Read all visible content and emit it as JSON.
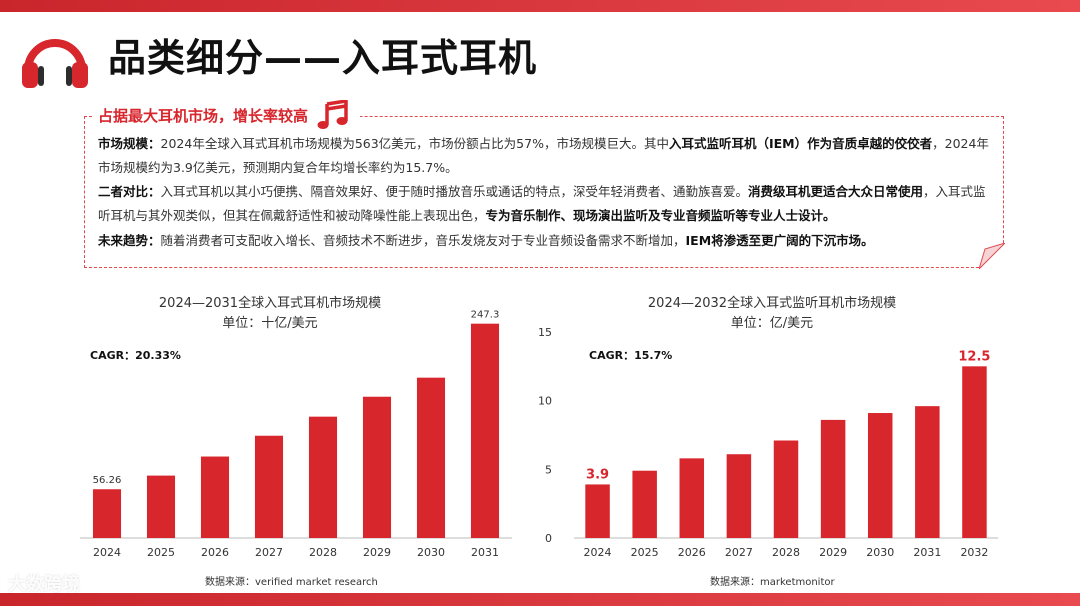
{
  "header": {
    "title": "品类细分——入耳式耳机",
    "subtitle": "占据最大耳机市场，增长率较高"
  },
  "paragraphs": {
    "p1_label": "市场规模：",
    "p1_text": "2024年全球入耳式耳机市场规模为563亿美元，市场份额占比为57%，市场规模巨大。其中",
    "p1_bold": "入耳式监听耳机（IEM）作为音质卓越的佼佼者",
    "p1_text2": "，2024年市场规模约为3.9亿美元，预测期内复合年均增长率约为15.7%。",
    "p2_label": "二者对比：",
    "p2_text": "入耳式耳机以其小巧便携、隔音效果好、便于随时播放音乐或通话的特点，深受年轻消费者、通勤族喜爱。",
    "p2_bold": "消费级耳机更适合大众日常使用",
    "p2_text2": "，入耳式监听耳机与其外观类似，但其在佩戴舒适性和被动降噪性能上表现出色，",
    "p2_bold2": "专为音乐制作、现场演出监听及专业音频监听等专业人士设计。",
    "p3_label": "未来趋势：",
    "p3_text": "随着消费者可支配收入增长、音频技术不断进步，音乐发烧友对于专业音频设备需求不断增加，",
    "p3_bold": "IEM将渗透至更广阔的下沉市场。"
  },
  "chart_data": [
    {
      "type": "bar",
      "title": "2024—2031全球入耳式耳机市场规模",
      "unit": "单位：十亿/美元",
      "cagr": "CAGR：20.33%",
      "categories": [
        "2024",
        "2025",
        "2026",
        "2027",
        "2028",
        "2029",
        "2030",
        "2031"
      ],
      "values": [
        56.26,
        72,
        94,
        118,
        140,
        163,
        185,
        247.3
      ],
      "data_labels": {
        "0": "56.26",
        "7": "247.3"
      },
      "ylim": [
        0,
        270
      ],
      "grid": false,
      "source": "数据来源：verified market research",
      "color": "#d8262d"
    },
    {
      "type": "bar",
      "title": "2024—2032全球入耳式监听耳机市场规模",
      "unit": "单位：亿/美元",
      "cagr": "CAGR：15.7%",
      "categories": [
        "2024",
        "2025",
        "2026",
        "2027",
        "2028",
        "2029",
        "2030",
        "2031",
        "2032"
      ],
      "values": [
        3.9,
        4.9,
        5.8,
        6.1,
        7.1,
        8.6,
        9.1,
        9.6,
        12.5
      ],
      "data_labels": {
        "0": "3.9",
        "8": "12.5"
      },
      "yticks": [
        0,
        5,
        10,
        15
      ],
      "ylim": [
        0,
        15
      ],
      "grid": false,
      "source": "数据来源：marketmonitor",
      "color": "#d8262d"
    }
  ],
  "watermark": "大数跨境"
}
